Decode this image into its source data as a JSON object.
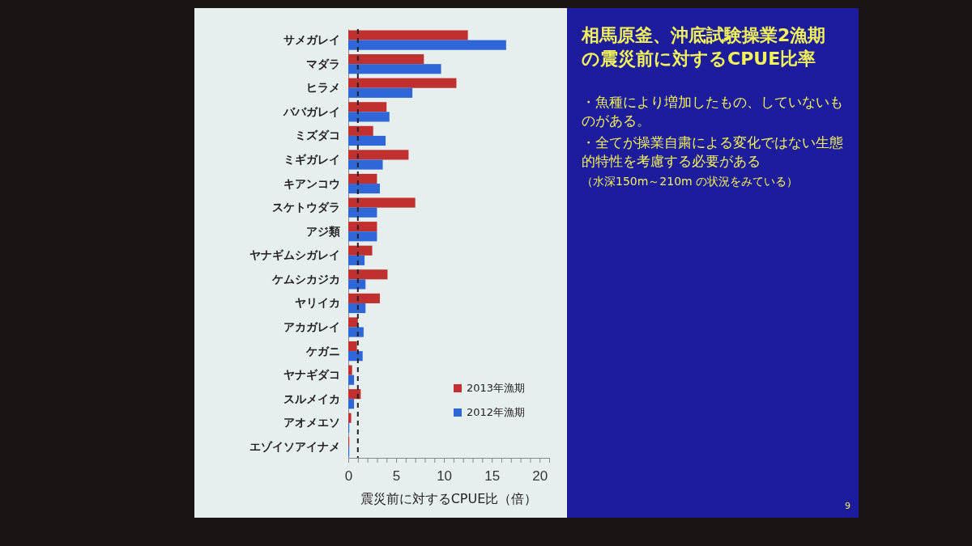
{
  "chart_data": {
    "type": "bar",
    "orientation": "horizontal",
    "title": "相馬原釜、沖底試験操業2漁期の震災前に対するCPUE比率",
    "categories": [
      "サメガレイ",
      "マダラ",
      "ヒラメ",
      "ババガレイ",
      "ミズダコ",
      "ミギガレイ",
      "キアンコウ",
      "スケトウダラ",
      "アジ類",
      "ヤナギムシガレイ",
      "ケムシカジカ",
      "ヤリイカ",
      "アカガレイ",
      "ケガニ",
      "ヤナギダコ",
      "スルメイカ",
      "アオメエソ",
      "エゾイソアイナメ"
    ],
    "series": [
      {
        "name": "2013年漁期",
        "color": "#c0302e",
        "values": [
          12.5,
          7.9,
          11.3,
          4.0,
          2.6,
          6.3,
          3.0,
          7.0,
          3.0,
          2.5,
          4.1,
          3.3,
          1.0,
          0.9,
          0.4,
          1.3,
          0.3,
          0.1
        ]
      },
      {
        "name": "2012年漁期",
        "color": "#2f66d8",
        "values": [
          16.5,
          9.7,
          6.7,
          4.3,
          3.9,
          3.6,
          3.3,
          3.0,
          3.0,
          1.7,
          1.8,
          1.8,
          1.6,
          1.5,
          0.6,
          0.6,
          0.1,
          0.1
        ]
      }
    ],
    "xlabel": "震災前に対するCPUE比（倍）",
    "xlim": [
      0,
      21
    ],
    "xticks": [
      0,
      {
        "value": 1,
        "label": null
      },
      {
        "value": 2,
        "label": null
      },
      {
        "value": 3,
        "label": null
      },
      {
        "value": 4,
        "label": null
      },
      5,
      {
        "value": 6,
        "label": null
      },
      {
        "value": 7,
        "label": null
      },
      {
        "value": 8,
        "label": null
      },
      {
        "value": 9,
        "label": null
      },
      10,
      {
        "value": 11,
        "label": null
      },
      {
        "value": 12,
        "label": null
      },
      {
        "value": 13,
        "label": null
      },
      {
        "value": 14,
        "label": null
      },
      15,
      {
        "value": 16,
        "label": null
      },
      {
        "value": 17,
        "label": null
      },
      {
        "value": 18,
        "label": null
      },
      {
        "value": 19,
        "label": null
      },
      20,
      {
        "value": 21,
        "label": null
      }
    ],
    "ref_lines": [
      {
        "axis": "x",
        "value": 1,
        "color": "#222222",
        "line_style": "dashed"
      }
    ],
    "legend": "bottom right",
    "annotations": [
      "・魚種により増加したもの、していないものがある。",
      "・全てが操業自粛による変化ではない生態的特性を考慮する必要がある",
      "（水深150m～210m の状況をみている）",
      "9"
    ]
  }
}
